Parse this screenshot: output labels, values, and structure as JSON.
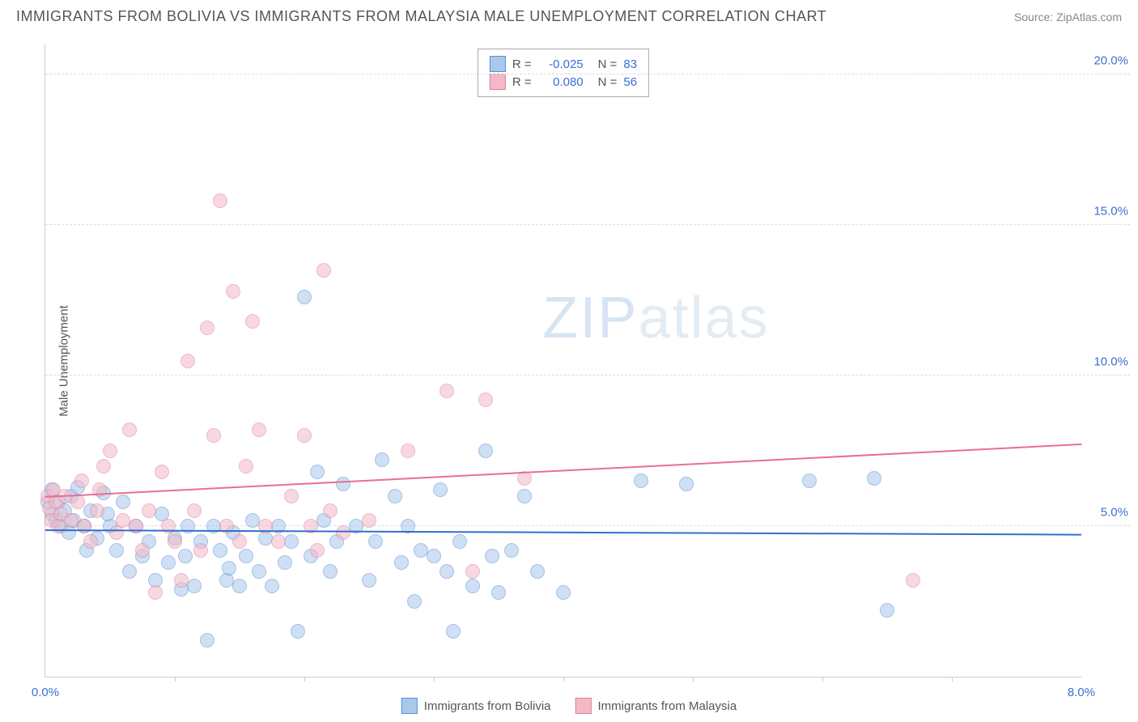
{
  "title": "IMMIGRANTS FROM BOLIVIA VS IMMIGRANTS FROM MALAYSIA MALE UNEMPLOYMENT CORRELATION CHART",
  "source": "Source: ZipAtlas.com",
  "ylabel": "Male Unemployment",
  "watermark_a": "ZIP",
  "watermark_b": "atlas",
  "chart": {
    "type": "scatter",
    "x_min": 0.0,
    "x_max": 8.0,
    "x_tick_step": 1.0,
    "y_min": 0.0,
    "y_max": 21.0,
    "y_ticks": [
      5.0,
      10.0,
      15.0,
      20.0
    ],
    "y_tick_labels": [
      "5.0%",
      "10.0%",
      "15.0%",
      "20.0%"
    ],
    "x_left_label": "0.0%",
    "x_right_label": "8.0%",
    "grid_color": "#dddddd",
    "axis_color": "#cccccc",
    "tick_label_color": "#3b6fd4",
    "background_color": "#ffffff",
    "dot_radius": 9,
    "dot_opacity": 0.55,
    "series": [
      {
        "key": "bolivia",
        "label": "Immigrants from Bolivia",
        "color_fill": "#a9c8ec",
        "color_stroke": "#5a8fd6",
        "R": "-0.025",
        "N": "83",
        "trend": {
          "y_at_xmin": 4.85,
          "y_at_xmax": 4.7,
          "color": "#2f6fd0",
          "width": 2
        }
      },
      {
        "key": "malaysia",
        "label": "Immigrants from Malaysia",
        "color_fill": "#f4b9c7",
        "color_stroke": "#e07f9b",
        "R": "0.080",
        "N": "56",
        "trend": {
          "y_at_xmin": 5.95,
          "y_at_xmax": 7.7,
          "color": "#e86f93",
          "width": 2
        }
      }
    ],
    "points": {
      "bolivia": [
        [
          0.02,
          5.8
        ],
        [
          0.05,
          6.2
        ],
        [
          0.05,
          5.4
        ],
        [
          0.08,
          5.2
        ],
        [
          0.1,
          5.8
        ],
        [
          0.12,
          5.0
        ],
        [
          0.15,
          5.5
        ],
        [
          0.2,
          6.0
        ],
        [
          0.22,
          5.2
        ],
        [
          0.25,
          6.3
        ],
        [
          0.3,
          5.0
        ],
        [
          0.35,
          5.5
        ],
        [
          0.4,
          4.6
        ],
        [
          0.45,
          6.1
        ],
        [
          0.5,
          5.0
        ],
        [
          0.55,
          4.2
        ],
        [
          0.6,
          5.8
        ],
        [
          0.65,
          3.5
        ],
        [
          0.7,
          5.0
        ],
        [
          0.75,
          4.0
        ],
        [
          0.8,
          4.5
        ],
        [
          0.85,
          3.2
        ],
        [
          0.9,
          5.4
        ],
        [
          0.95,
          3.8
        ],
        [
          1.0,
          4.6
        ],
        [
          1.05,
          2.9
        ],
        [
          1.1,
          5.0
        ],
        [
          1.15,
          3.0
        ],
        [
          1.2,
          4.5
        ],
        [
          1.25,
          1.2
        ],
        [
          1.3,
          5.0
        ],
        [
          1.35,
          4.2
        ],
        [
          1.4,
          3.2
        ],
        [
          1.45,
          4.8
        ],
        [
          1.5,
          3.0
        ],
        [
          1.55,
          4.0
        ],
        [
          1.6,
          5.2
        ],
        [
          1.65,
          3.5
        ],
        [
          1.7,
          4.6
        ],
        [
          1.75,
          3.0
        ],
        [
          1.8,
          5.0
        ],
        [
          1.85,
          3.8
        ],
        [
          1.9,
          4.5
        ],
        [
          1.95,
          1.5
        ],
        [
          2.0,
          12.6
        ],
        [
          2.05,
          4.0
        ],
        [
          2.1,
          6.8
        ],
        [
          2.15,
          5.2
        ],
        [
          2.2,
          3.5
        ],
        [
          2.25,
          4.5
        ],
        [
          2.3,
          6.4
        ],
        [
          2.4,
          5.0
        ],
        [
          2.5,
          3.2
        ],
        [
          2.55,
          4.5
        ],
        [
          2.6,
          7.2
        ],
        [
          2.7,
          6.0
        ],
        [
          2.75,
          3.8
        ],
        [
          2.8,
          5.0
        ],
        [
          2.85,
          2.5
        ],
        [
          2.9,
          4.2
        ],
        [
          3.0,
          4.0
        ],
        [
          3.05,
          6.2
        ],
        [
          3.1,
          3.5
        ],
        [
          3.15,
          1.5
        ],
        [
          3.2,
          4.5
        ],
        [
          3.3,
          3.0
        ],
        [
          3.4,
          7.5
        ],
        [
          3.45,
          4.0
        ],
        [
          3.5,
          2.8
        ],
        [
          3.6,
          4.2
        ],
        [
          3.7,
          6.0
        ],
        [
          3.8,
          3.5
        ],
        [
          4.0,
          2.8
        ],
        [
          4.6,
          6.5
        ],
        [
          4.95,
          6.4
        ],
        [
          5.9,
          6.5
        ],
        [
          6.4,
          6.6
        ],
        [
          6.5,
          2.2
        ],
        [
          0.18,
          4.8
        ],
        [
          0.32,
          4.2
        ],
        [
          0.48,
          5.4
        ],
        [
          1.08,
          4.0
        ],
        [
          1.42,
          3.6
        ]
      ],
      "malaysia": [
        [
          0.02,
          6.0
        ],
        [
          0.03,
          5.6
        ],
        [
          0.05,
          5.2
        ],
        [
          0.06,
          6.2
        ],
        [
          0.08,
          5.8
        ],
        [
          0.1,
          5.0
        ],
        [
          0.12,
          5.4
        ],
        [
          0.15,
          6.0
        ],
        [
          0.2,
          5.2
        ],
        [
          0.25,
          5.8
        ],
        [
          0.3,
          5.0
        ],
        [
          0.35,
          4.5
        ],
        [
          0.4,
          5.5
        ],
        [
          0.45,
          7.0
        ],
        [
          0.5,
          7.5
        ],
        [
          0.55,
          4.8
        ],
        [
          0.6,
          5.2
        ],
        [
          0.65,
          8.2
        ],
        [
          0.7,
          5.0
        ],
        [
          0.75,
          4.2
        ],
        [
          0.8,
          5.5
        ],
        [
          0.85,
          2.8
        ],
        [
          0.9,
          6.8
        ],
        [
          0.95,
          5.0
        ],
        [
          1.0,
          4.5
        ],
        [
          1.05,
          3.2
        ],
        [
          1.1,
          10.5
        ],
        [
          1.15,
          5.5
        ],
        [
          1.2,
          4.2
        ],
        [
          1.25,
          11.6
        ],
        [
          1.3,
          8.0
        ],
        [
          1.35,
          15.8
        ],
        [
          1.4,
          5.0
        ],
        [
          1.45,
          12.8
        ],
        [
          1.5,
          4.5
        ],
        [
          1.55,
          7.0
        ],
        [
          1.6,
          11.8
        ],
        [
          1.65,
          8.2
        ],
        [
          1.7,
          5.0
        ],
        [
          1.8,
          4.5
        ],
        [
          1.9,
          6.0
        ],
        [
          2.0,
          8.0
        ],
        [
          2.05,
          5.0
        ],
        [
          2.1,
          4.2
        ],
        [
          2.15,
          13.5
        ],
        [
          2.2,
          5.5
        ],
        [
          2.3,
          4.8
        ],
        [
          2.5,
          5.2
        ],
        [
          2.8,
          7.5
        ],
        [
          3.1,
          9.5
        ],
        [
          3.3,
          3.5
        ],
        [
          3.4,
          9.2
        ],
        [
          3.7,
          6.6
        ],
        [
          6.7,
          3.2
        ],
        [
          0.28,
          6.5
        ],
        [
          0.42,
          6.2
        ]
      ]
    }
  },
  "stats_box": {
    "R_label": "R =",
    "N_label": "N ="
  },
  "legend_value_color": "#3b6fd4",
  "legend_label_color": "#555555"
}
